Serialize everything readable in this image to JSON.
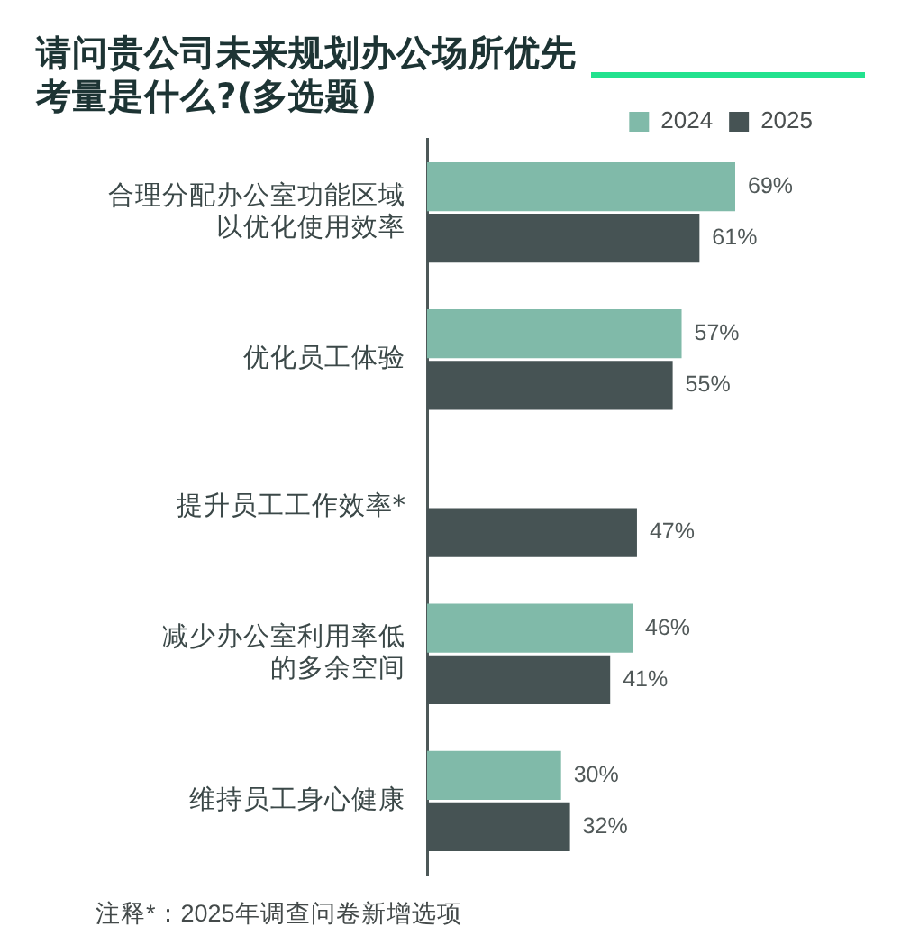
{
  "chart_data": {
    "type": "bar",
    "orientation": "horizontal",
    "title": "请问贵公司未来规划办公场所优先考量是什么?(多选题)",
    "categories": [
      "合理分配办公室功能区域以优化使用效率",
      "优化员工体验",
      "提升员工工作效率*",
      "减少办公室利用率低的多余空间",
      "维持员工身心健康"
    ],
    "series": [
      {
        "name": "2024",
        "color": "#80baa9",
        "values": [
          69,
          57,
          null,
          46,
          30
        ],
        "value_labels": [
          "69%",
          "57%",
          null,
          "46%",
          "30%"
        ]
      },
      {
        "name": "2025",
        "color": "#465354",
        "values": [
          61,
          55,
          47,
          41,
          32
        ],
        "value_labels": [
          "61%",
          "55%",
          "47%",
          "41%",
          "32%"
        ]
      }
    ],
    "grid": false,
    "legend": "top right",
    "tick_labels": "y",
    "annotations": [
      "注释*：2025年调查问卷新增选项"
    ]
  }
}
